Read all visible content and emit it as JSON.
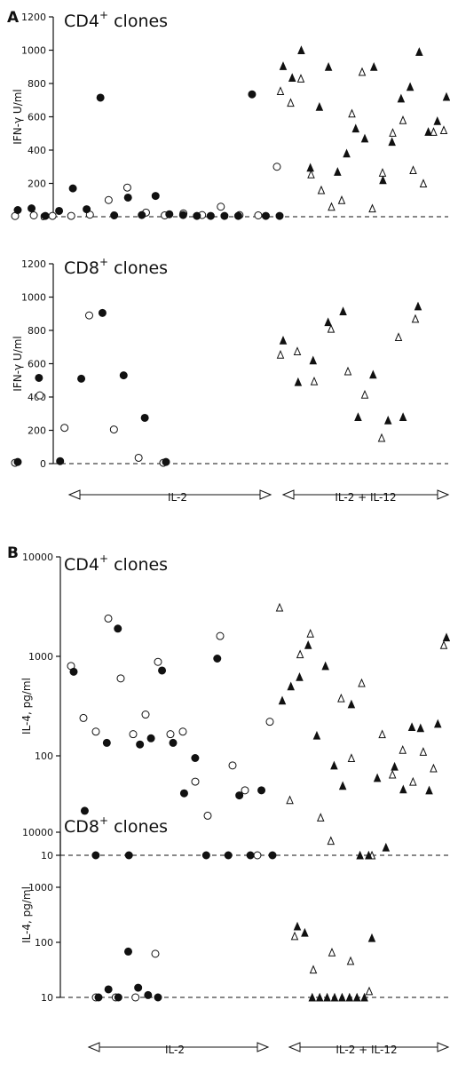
{
  "panel_labels": {
    "A": "A",
    "B": "B"
  },
  "arrow_labels": {
    "il2": "IL-2",
    "il2_il12": "IL-2 + IL-12"
  },
  "chart_data": [
    {
      "type": "scatter",
      "title": "CD4+ clones",
      "title_base": "CD4",
      "title_sup": "+",
      "title_rest": " clones",
      "ylabel": "IFN-γ U/ml",
      "yscale": "linear",
      "ylim": [
        0,
        1200
      ],
      "yticks": [
        0,
        200,
        400,
        600,
        800,
        1000,
        1200
      ],
      "ytick_labels": [
        "0",
        "200",
        "400",
        "600",
        "800",
        "1000",
        "1200"
      ],
      "series": [
        {
          "name": "IL-2",
          "open": [
            4,
            8,
            5,
            5,
            12,
            100,
            175,
            25,
            8,
            20,
            10,
            60,
            10,
            8,
            300
          ],
          "filled": [
            40,
            50,
            5,
            35,
            170,
            45,
            715,
            8,
            115,
            10,
            125,
            15,
            10,
            5,
            5,
            5,
            5,
            735,
            5,
            5
          ]
        },
        {
          "name": "IL-2 + IL-12",
          "open": [
            755,
            685,
            830,
            255,
            160,
            60,
            100,
            620,
            870,
            50,
            265,
            505,
            580,
            280,
            200,
            510,
            520
          ],
          "filled": [
            905,
            835,
            1000,
            295,
            660,
            900,
            270,
            380,
            530,
            470,
            900,
            220,
            450,
            710,
            780,
            990,
            510,
            575,
            720
          ]
        }
      ]
    },
    {
      "type": "scatter",
      "title": "CD8+ clones",
      "title_base": "CD8",
      "title_sup": "+",
      "title_rest": " clones",
      "ylabel": "IFN-γ U/ml",
      "yscale": "linear",
      "ylim": [
        0,
        1200
      ],
      "yticks": [
        0,
        200,
        400,
        600,
        800,
        1000,
        1200
      ],
      "ytick_labels": [
        "0",
        "200",
        "400",
        "600",
        "800",
        "1000",
        "1200"
      ],
      "series": [
        {
          "name": "IL-2",
          "open": [
            5,
            410,
            215,
            890,
            205,
            35,
            5
          ],
          "filled": [
            10,
            515,
            15,
            510,
            905,
            530,
            275,
            10
          ]
        },
        {
          "name": "IL-2 + IL-12",
          "open": [
            655,
            675,
            495,
            810,
            555,
            415,
            155,
            760,
            870
          ],
          "filled": [
            740,
            490,
            620,
            850,
            915,
            280,
            535,
            260,
            280,
            945
          ]
        }
      ]
    },
    {
      "type": "scatter",
      "title": "CD4+ clones",
      "title_base": "CD4",
      "title_sup": "+",
      "title_rest": " clones",
      "ylabel": "IL-4, pg/ml",
      "yscale": "log",
      "ylim": [
        10,
        10000
      ],
      "yticks": [
        10,
        100,
        1000,
        10000
      ],
      "ytick_labels": [
        "10",
        "100",
        "1000",
        "10000"
      ],
      "series": [
        {
          "name": "IL-2",
          "open": [
            800,
            240,
            175,
            2400,
            600,
            165,
            260,
            880,
            165,
            175,
            55,
            25,
            1600,
            80,
            45,
            10,
            220
          ],
          "filled": [
            700,
            28,
            10,
            135,
            1900,
            10,
            130,
            150,
            720,
            135,
            42,
            95,
            10,
            950,
            10,
            40,
            10,
            45,
            10
          ]
        },
        {
          "name": "IL-2 + IL-12",
          "open": [
            3100,
            36,
            1050,
            1700,
            24,
            14,
            380,
            95,
            540,
            10,
            165,
            65,
            115,
            55,
            110,
            75,
            1300
          ],
          "filled": [
            360,
            500,
            620,
            1300,
            160,
            800,
            80,
            50,
            330,
            10,
            10,
            60,
            12,
            78,
            46,
            195,
            190,
            45,
            210,
            1550
          ]
        }
      ]
    },
    {
      "type": "scatter",
      "title": "CD8+ clones",
      "title_base": "CD8",
      "title_sup": "+",
      "title_rest": " clones",
      "ylabel": "IL-4, pg/ml",
      "yscale": "log",
      "ylim": [
        10,
        10000
      ],
      "yticks": [
        10,
        100,
        1000,
        10000
      ],
      "ytick_labels": [
        "10",
        "100",
        "1000",
        "10000"
      ],
      "series": [
        {
          "name": "IL-2",
          "open": [
            10,
            10,
            10,
            62
          ],
          "filled": [
            10,
            14,
            10,
            68,
            15,
            11,
            10
          ]
        },
        {
          "name": "IL-2 + IL-12",
          "open": [
            130,
            32,
            66,
            46,
            13
          ],
          "filled": [
            195,
            150,
            10,
            10,
            10,
            10,
            10,
            10,
            10,
            10,
            120
          ]
        }
      ]
    }
  ]
}
